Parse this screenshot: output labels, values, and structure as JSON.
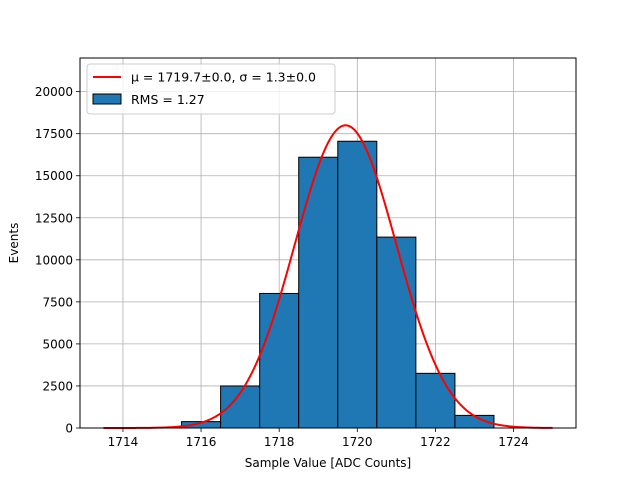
{
  "chart_data": {
    "type": "bar",
    "xlabel": "Sample Value [ADC Counts]",
    "ylabel": "Events",
    "xlim": [
      1712.9,
      1725.6
    ],
    "ylim": [
      0,
      22000
    ],
    "grid": true,
    "legend_position": "top-left",
    "x_ticks": [
      1714,
      1716,
      1718,
      1720,
      1722,
      1724
    ],
    "y_ticks": [
      0,
      2500,
      5000,
      7500,
      10000,
      12500,
      15000,
      17500,
      20000
    ],
    "histogram": {
      "name": "RMS = 1.27",
      "color": "#1f77b4",
      "edgecolor": "#000000",
      "bin_edges": [
        1713.5,
        1714.5,
        1715.5,
        1716.5,
        1717.5,
        1718.5,
        1719.5,
        1720.5,
        1721.5,
        1722.5,
        1723.5
      ],
      "counts": [
        0,
        20,
        380,
        2500,
        8000,
        16100,
        17050,
        11350,
        3250,
        750
      ]
    },
    "fit": {
      "name_math": "μ = 1719.7±0.0, σ = 1.3±0.0",
      "color": "#ff0000",
      "mu": 1719.7,
      "sigma": 1.3,
      "amplitude": 18000,
      "x_range": [
        1713.5,
        1725
      ]
    }
  }
}
